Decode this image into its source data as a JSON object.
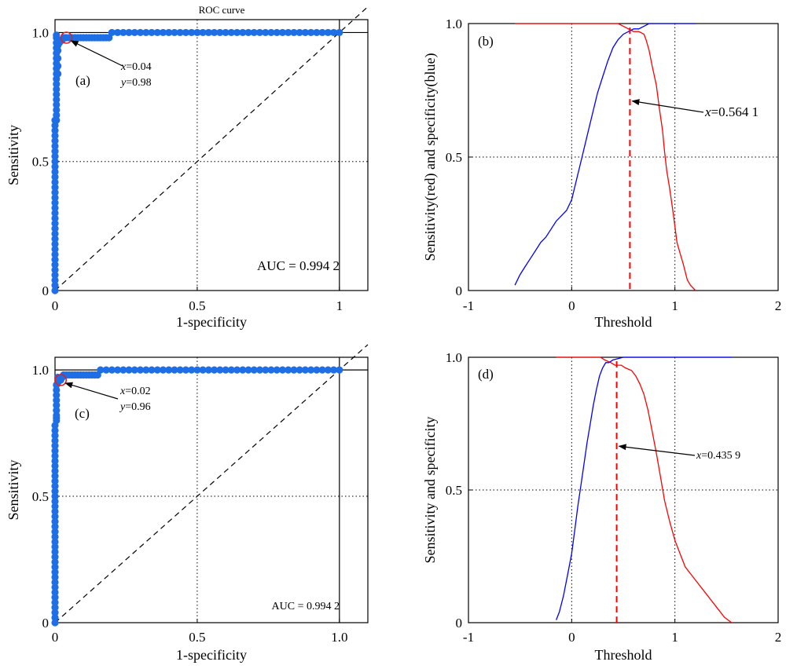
{
  "chart_data": [
    {
      "type": "scatter",
      "panel": "a",
      "title": "ROC curve",
      "panel_label": "(a)",
      "xlabel": "1-specificity",
      "ylabel": "Sensitivity",
      "xlim": [
        0,
        1.1
      ],
      "ylim": [
        0,
        1.05
      ],
      "xticks": [
        0,
        0.5,
        1
      ],
      "xtick_labels": [
        "0",
        "0.5",
        "1"
      ],
      "yticks": [
        0,
        0.5,
        1
      ],
      "ytick_labels": [
        "0",
        "0.5",
        "1.0"
      ],
      "grid": "dotted at 0.5",
      "colors": {
        "points": "#1e6fe6",
        "marker": "#e02020",
        "reference": "#000000"
      },
      "series": [
        {
          "x": [
            0,
            0,
            0,
            0,
            0,
            0,
            0,
            0,
            0,
            0,
            0,
            0,
            0,
            0,
            0,
            0,
            0,
            0,
            0,
            0,
            0,
            0,
            0,
            0,
            0,
            0,
            0,
            0,
            0,
            0,
            0,
            0,
            0,
            0,
            0.005,
            0.005,
            0.005,
            0.005,
            0.005,
            0.005,
            0.005,
            0.005,
            0.005,
            0.005,
            0.005,
            0.005,
            0.005,
            0.005,
            0.005,
            0.005,
            0.005,
            0.005,
            0.01,
            0.01,
            0.01,
            0.01,
            0.01,
            0.015,
            0.02,
            0.025,
            0.03,
            0.035,
            0.04,
            0.05,
            0.06,
            0.07,
            0.08,
            0.09,
            0.1,
            0.11,
            0.12,
            0.13,
            0.14,
            0.15,
            0.16,
            0.17,
            0.18,
            0.19,
            0.2,
            0.22,
            0.24,
            0.26,
            0.28,
            0.3,
            0.32,
            0.34,
            0.36,
            0.38,
            0.4,
            0.42,
            0.44,
            0.46,
            0.48,
            0.5,
            0.52,
            0.54,
            0.56,
            0.58,
            0.6,
            0.62,
            0.64,
            0.66,
            0.68,
            0.7,
            0.72,
            0.74,
            0.76,
            0.78,
            0.8,
            0.82,
            0.84,
            0.86,
            0.88,
            0.9,
            0.92,
            0.94,
            0.96,
            0.98,
            1.0
          ],
          "y": [
            0,
            0.02,
            0.04,
            0.06,
            0.08,
            0.1,
            0.12,
            0.14,
            0.16,
            0.18,
            0.2,
            0.22,
            0.24,
            0.26,
            0.28,
            0.3,
            0.32,
            0.34,
            0.36,
            0.38,
            0.4,
            0.42,
            0.44,
            0.46,
            0.48,
            0.5,
            0.52,
            0.54,
            0.56,
            0.58,
            0.6,
            0.62,
            0.64,
            0.66,
            0.66,
            0.68,
            0.7,
            0.72,
            0.74,
            0.76,
            0.78,
            0.8,
            0.82,
            0.84,
            0.86,
            0.88,
            0.9,
            0.92,
            0.94,
            0.96,
            0.98,
            0.99,
            0.84,
            0.87,
            0.9,
            0.93,
            0.95,
            0.96,
            0.97,
            0.97,
            0.98,
            0.98,
            0.98,
            0.98,
            0.98,
            0.98,
            0.98,
            0.98,
            0.98,
            0.98,
            0.98,
            0.98,
            0.98,
            0.98,
            0.98,
            0.98,
            0.98,
            0.98,
            1.0,
            1.0,
            1.0,
            1.0,
            1.0,
            1.0,
            1.0,
            1.0,
            1.0,
            1.0,
            1.0,
            1.0,
            1.0,
            1.0,
            1.0,
            1.0,
            1.0,
            1.0,
            1.0,
            1.0,
            1.0,
            1.0,
            1.0,
            1.0,
            1.0,
            1.0,
            1.0,
            1.0,
            1.0,
            1.0,
            1.0,
            1.0,
            1.0,
            1.0,
            1.0,
            1.0,
            1.0,
            1.0,
            1.0,
            1.0,
            1.0
          ]
        }
      ],
      "highlight": {
        "x": 0.04,
        "y": 0.98
      },
      "annotation_x": "0.04",
      "annotation_y": "0.98",
      "auc_text": "AUC = 0.994 2"
    },
    {
      "type": "line",
      "panel": "b",
      "panel_label": "(b)",
      "xlabel": "Threshold",
      "ylabel": "Sensitivity(red) and specificity(blue)",
      "xlim": [
        -1,
        2
      ],
      "ylim": [
        0,
        1
      ],
      "xticks": [
        -1,
        0,
        1,
        2
      ],
      "xtick_labels": [
        "-1",
        "0",
        "1",
        "2"
      ],
      "yticks": [
        0,
        0.5,
        1
      ],
      "ytick_labels": [
        "0",
        "0.5",
        "1.0"
      ],
      "grid": "dotted at 0, 1 and 0.5",
      "colors": {
        "sensitivity": "#ff0000",
        "specificity": "#0000ff"
      },
      "series": [
        {
          "color": "#ff0000",
          "x": [
            -0.55,
            0.3,
            0.45,
            0.5,
            0.55,
            0.6,
            0.65,
            0.7,
            0.72,
            0.75,
            0.78,
            0.82,
            0.85,
            0.88,
            0.9,
            0.92,
            0.95,
            0.98,
            1.0,
            1.02,
            1.05,
            1.08,
            1.1,
            1.12,
            1.15,
            1.2
          ],
          "y": [
            1.0,
            1.0,
            1.0,
            0.99,
            0.98,
            0.97,
            0.97,
            0.96,
            0.94,
            0.9,
            0.84,
            0.77,
            0.68,
            0.6,
            0.52,
            0.45,
            0.38,
            0.3,
            0.24,
            0.18,
            0.14,
            0.1,
            0.07,
            0.04,
            0.02,
            0.0
          ]
        },
        {
          "color": "#0000ff",
          "x": [
            -0.55,
            -0.5,
            -0.45,
            -0.4,
            -0.35,
            -0.3,
            -0.25,
            -0.2,
            -0.15,
            -0.1,
            -0.05,
            0.0,
            0.05,
            0.1,
            0.15,
            0.2,
            0.25,
            0.3,
            0.35,
            0.4,
            0.45,
            0.5,
            0.55,
            0.6,
            0.65,
            0.7,
            0.75,
            0.8,
            0.95,
            1.2
          ],
          "y": [
            0.02,
            0.06,
            0.09,
            0.12,
            0.15,
            0.18,
            0.2,
            0.23,
            0.26,
            0.28,
            0.3,
            0.34,
            0.42,
            0.5,
            0.58,
            0.66,
            0.74,
            0.8,
            0.86,
            0.91,
            0.94,
            0.96,
            0.97,
            0.98,
            0.98,
            0.99,
            1.0,
            1.0,
            1.0,
            1.0
          ]
        }
      ],
      "threshold": 0.5641,
      "threshold_label": "=0.564 1",
      "threshold_var": "x"
    },
    {
      "type": "scatter",
      "panel": "c",
      "panel_label": "(c)",
      "xlabel": "1-specificity",
      "ylabel": "Sensitivity",
      "xlim": [
        0,
        1.1
      ],
      "ylim": [
        0,
        1.05
      ],
      "xticks": [
        0,
        0.5,
        1.0
      ],
      "xtick_labels": [
        "0",
        "0.5",
        "1.0"
      ],
      "yticks": [
        0,
        0.5,
        1
      ],
      "ytick_labels": [
        "0",
        "0.5",
        "1.0"
      ],
      "grid": "dotted at 0.5",
      "colors": {
        "points": "#1e6fe6",
        "marker": "#e02020",
        "reference": "#000000"
      },
      "series": [
        {
          "x": [
            0,
            0,
            0,
            0,
            0,
            0,
            0,
            0,
            0,
            0,
            0,
            0,
            0,
            0,
            0,
            0,
            0,
            0,
            0,
            0,
            0,
            0,
            0,
            0,
            0,
            0,
            0,
            0,
            0,
            0,
            0,
            0,
            0,
            0,
            0,
            0,
            0,
            0,
            0,
            0,
            0.005,
            0.005,
            0.005,
            0.005,
            0.005,
            0.005,
            0.005,
            0.005,
            0.005,
            0.01,
            0.01,
            0.01,
            0.01,
            0.015,
            0.02,
            0.025,
            0.03,
            0.04,
            0.05,
            0.06,
            0.07,
            0.08,
            0.09,
            0.1,
            0.11,
            0.12,
            0.13,
            0.14,
            0.15,
            0.16,
            0.18,
            0.2,
            0.22,
            0.24,
            0.26,
            0.28,
            0.3,
            0.32,
            0.34,
            0.36,
            0.38,
            0.4,
            0.42,
            0.44,
            0.46,
            0.48,
            0.5,
            0.52,
            0.54,
            0.56,
            0.58,
            0.6,
            0.62,
            0.64,
            0.66,
            0.68,
            0.7,
            0.72,
            0.74,
            0.76,
            0.78,
            0.8,
            0.82,
            0.84,
            0.86,
            0.88,
            0.9,
            0.92,
            0.94,
            0.96,
            0.98,
            1.0
          ],
          "y": [
            0,
            0.02,
            0.04,
            0.06,
            0.08,
            0.1,
            0.12,
            0.14,
            0.16,
            0.18,
            0.2,
            0.22,
            0.24,
            0.26,
            0.28,
            0.3,
            0.32,
            0.34,
            0.36,
            0.38,
            0.4,
            0.42,
            0.44,
            0.46,
            0.48,
            0.5,
            0.52,
            0.54,
            0.56,
            0.58,
            0.6,
            0.62,
            0.64,
            0.66,
            0.68,
            0.7,
            0.72,
            0.74,
            0.76,
            0.78,
            0.8,
            0.81,
            0.82,
            0.84,
            0.86,
            0.88,
            0.9,
            0.92,
            0.94,
            0.95,
            0.96,
            0.97,
            0.97,
            0.96,
            0.96,
            0.97,
            0.98,
            0.98,
            0.98,
            0.98,
            0.98,
            0.98,
            0.98,
            0.98,
            0.98,
            0.98,
            0.98,
            0.98,
            0.98,
            1.0,
            1.0,
            1.0,
            1.0,
            1.0,
            1.0,
            1.0,
            1.0,
            1.0,
            1.0,
            1.0,
            1.0,
            1.0,
            1.0,
            1.0,
            1.0,
            1.0,
            1.0,
            1.0,
            1.0,
            1.0,
            1.0,
            1.0,
            1.0,
            1.0,
            1.0,
            1.0,
            1.0,
            1.0,
            1.0,
            1.0,
            1.0,
            1.0,
            1.0,
            1.0,
            1.0,
            1.0,
            1.0,
            1.0,
            1.0,
            1.0,
            1.0,
            1.0
          ]
        }
      ],
      "highlight": {
        "x": 0.02,
        "y": 0.96
      },
      "annotation_x": "0.02",
      "annotation_y": "0.96",
      "auc_text": "AUC = 0.994 2"
    },
    {
      "type": "line",
      "panel": "d",
      "panel_label": "(d)",
      "xlabel": "Threshold",
      "ylabel": "Sensitivity and specificity",
      "xlim": [
        -1,
        2
      ],
      "ylim": [
        0,
        1
      ],
      "xticks": [
        -1,
        0,
        1,
        2
      ],
      "xtick_labels": [
        "-1",
        "0",
        "1",
        "2"
      ],
      "yticks": [
        0,
        0.5,
        1
      ],
      "ytick_labels": [
        "0",
        "0.5",
        "1.0"
      ],
      "grid": "dotted at 0, 1 and 0.5",
      "colors": {
        "sensitivity": "#ff0000",
        "specificity": "#0000ff"
      },
      "series": [
        {
          "color": "#ff0000",
          "x": [
            -0.15,
            0.28,
            0.32,
            0.38,
            0.42,
            0.48,
            0.52,
            0.58,
            0.62,
            0.66,
            0.7,
            0.74,
            0.78,
            0.82,
            0.86,
            0.9,
            0.95,
            1.0,
            1.05,
            1.1,
            1.2,
            1.3,
            1.4,
            1.48,
            1.55
          ],
          "y": [
            1.0,
            1.0,
            0.99,
            0.98,
            0.97,
            0.97,
            0.96,
            0.95,
            0.93,
            0.9,
            0.86,
            0.8,
            0.72,
            0.64,
            0.55,
            0.46,
            0.38,
            0.31,
            0.26,
            0.21,
            0.16,
            0.11,
            0.06,
            0.02,
            0.0
          ]
        },
        {
          "color": "#0000ff",
          "x": [
            -0.15,
            -0.12,
            -0.08,
            -0.04,
            0.0,
            0.03,
            0.06,
            0.09,
            0.12,
            0.15,
            0.18,
            0.21,
            0.24,
            0.27,
            0.3,
            0.33,
            0.36,
            0.4,
            0.5,
            0.7,
            1.0,
            1.55
          ],
          "y": [
            0.01,
            0.04,
            0.1,
            0.18,
            0.26,
            0.35,
            0.44,
            0.52,
            0.6,
            0.68,
            0.75,
            0.82,
            0.88,
            0.93,
            0.96,
            0.98,
            0.98,
            0.99,
            1.0,
            1.0,
            1.0,
            1.0
          ]
        }
      ],
      "threshold": 0.4359,
      "threshold_label": "=0.435 9",
      "threshold_var": "x"
    }
  ]
}
